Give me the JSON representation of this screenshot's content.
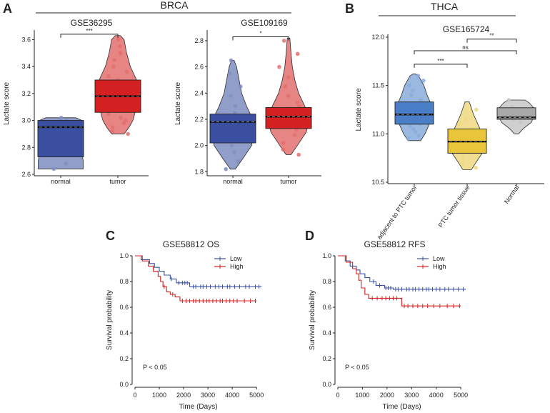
{
  "colors": {
    "normal_brca": "#3a4fa0",
    "tumor_brca": "#d42020",
    "adjacent": "#4a7fc8",
    "ptc": "#e8c53a",
    "thca_normal": "#a8a8a8",
    "km_low": "#3a4fa0",
    "km_high": "#d42020"
  },
  "panels": {
    "A": {
      "letter": "A",
      "group": "BRCA"
    },
    "B": {
      "letter": "B",
      "group": "THCA"
    },
    "C": {
      "letter": "C"
    },
    "D": {
      "letter": "D"
    }
  },
  "chart_data": [
    {
      "id": "A1",
      "type": "box-violin",
      "title": "GSE36295",
      "ylabel": "Lactate score",
      "ylim": [
        2.6,
        3.65
      ],
      "yticks": [
        2.6,
        2.8,
        3.0,
        3.2,
        3.4,
        3.6
      ],
      "ytick_labels": [
        "2.6",
        "2.8",
        "3.0",
        "3.2",
        "3.4",
        "3.6"
      ],
      "categories": [
        "normal",
        "tumor"
      ],
      "series": [
        {
          "name": "normal",
          "color_key": "normal_brca",
          "box": {
            "q1": 2.73,
            "median": 2.95,
            "q3": 3.0,
            "min": 2.64,
            "max": 3.02
          },
          "violin": [
            [
              2.64,
              0.9
            ],
            [
              2.7,
              0.9
            ],
            [
              2.75,
              0.85
            ],
            [
              2.85,
              0.85
            ],
            [
              2.95,
              0.9
            ],
            [
              3.0,
              0.85
            ],
            [
              3.02,
              0.6
            ]
          ],
          "points": [
            2.64,
            2.68,
            2.75,
            2.9,
            2.95,
            2.97,
            3.0,
            3.01,
            3.02
          ]
        },
        {
          "name": "tumor",
          "color_key": "tumor_brca",
          "box": {
            "q1": 3.06,
            "median": 3.18,
            "q3": 3.3,
            "min": 2.9,
            "max": 3.63
          },
          "violin": [
            [
              2.9,
              0.25
            ],
            [
              2.95,
              0.45
            ],
            [
              3.0,
              0.6
            ],
            [
              3.1,
              0.75
            ],
            [
              3.2,
              0.85
            ],
            [
              3.3,
              0.75
            ],
            [
              3.4,
              0.5
            ],
            [
              3.5,
              0.35
            ],
            [
              3.6,
              0.25
            ],
            [
              3.63,
              0.1
            ]
          ],
          "points": [
            2.9,
            2.92,
            2.95,
            2.98,
            3.0,
            3.02,
            3.05,
            3.08,
            3.1,
            3.12,
            3.15,
            3.18,
            3.2,
            3.22,
            3.25,
            3.28,
            3.3,
            3.33,
            3.36,
            3.4,
            3.45,
            3.5,
            3.55,
            3.6
          ]
        }
      ],
      "significance": [
        {
          "from": 0,
          "to": 1,
          "label": "***",
          "y": 3.64
        }
      ]
    },
    {
      "id": "A2",
      "type": "box-violin",
      "title": "GSE109169",
      "ylabel": "Lactate score",
      "ylim": [
        1.78,
        2.86
      ],
      "yticks": [
        1.8,
        2.0,
        2.2,
        2.4,
        2.6,
        2.8
      ],
      "ytick_labels": [
        "1.8",
        "2.0",
        "2.2",
        "2.4",
        "2.6",
        "2.8"
      ],
      "categories": [
        "normal",
        "tumor"
      ],
      "series": [
        {
          "name": "normal",
          "color_key": "normal_brca",
          "box": {
            "q1": 2.02,
            "median": 2.18,
            "q3": 2.24,
            "min": 1.82,
            "max": 2.65
          },
          "violin": [
            [
              1.82,
              0.1
            ],
            [
              1.9,
              0.4
            ],
            [
              2.0,
              0.75
            ],
            [
              2.1,
              0.85
            ],
            [
              2.2,
              0.8
            ],
            [
              2.3,
              0.55
            ],
            [
              2.4,
              0.35
            ],
            [
              2.5,
              0.25
            ],
            [
              2.6,
              0.15
            ],
            [
              2.65,
              0.05
            ]
          ],
          "points": [
            1.82,
            1.88,
            1.95,
            2.0,
            2.05,
            2.1,
            2.12,
            2.15,
            2.18,
            2.2,
            2.22,
            2.25,
            2.3,
            2.38,
            2.45,
            2.55,
            2.65
          ]
        },
        {
          "name": "tumor",
          "color_key": "tumor_brca",
          "box": {
            "q1": 2.13,
            "median": 2.22,
            "q3": 2.29,
            "min": 1.93,
            "max": 2.82
          },
          "violin": [
            [
              1.93,
              0.1
            ],
            [
              2.0,
              0.35
            ],
            [
              2.1,
              0.7
            ],
            [
              2.2,
              0.85
            ],
            [
              2.3,
              0.65
            ],
            [
              2.4,
              0.4
            ],
            [
              2.5,
              0.25
            ],
            [
              2.6,
              0.15
            ],
            [
              2.7,
              0.1
            ],
            [
              2.82,
              0.05
            ]
          ],
          "points": [
            1.93,
            1.97,
            2.02,
            2.08,
            2.12,
            2.15,
            2.18,
            2.2,
            2.22,
            2.24,
            2.26,
            2.28,
            2.3,
            2.33,
            2.38,
            2.45,
            2.52,
            2.6,
            2.7,
            2.8
          ]
        }
      ],
      "significance": [
        {
          "from": 0,
          "to": 1,
          "label": "*",
          "y": 2.83
        }
      ]
    },
    {
      "id": "B",
      "type": "box-violin",
      "title": "GSE165724",
      "ylabel": "Lactate score",
      "ylim": [
        10.5,
        12.0
      ],
      "yticks": [
        10.5,
        11.0,
        11.5,
        12.0
      ],
      "ytick_labels": [
        "10.5",
        "11.0",
        "11.5",
        "12.0"
      ],
      "categories": [
        "adjacent to PTC tumor",
        "PTC tumor tissue",
        "Normal"
      ],
      "series": [
        {
          "name": "adjacent to PTC tumor",
          "color_key": "adjacent",
          "box": {
            "q1": 11.1,
            "median": 11.2,
            "q3": 11.33,
            "min": 10.93,
            "max": 11.62
          },
          "violin": [
            [
              10.93,
              0.3
            ],
            [
              11.0,
              0.5
            ],
            [
              11.1,
              0.7
            ],
            [
              11.2,
              0.85
            ],
            [
              11.3,
              0.8
            ],
            [
              11.4,
              0.6
            ],
            [
              11.5,
              0.45
            ],
            [
              11.6,
              0.2
            ],
            [
              11.62,
              0.05
            ]
          ],
          "points": [
            10.95,
            10.98,
            11.02,
            11.05,
            11.08,
            11.1,
            11.13,
            11.16,
            11.18,
            11.2,
            11.22,
            11.25,
            11.28,
            11.3,
            11.35,
            11.4,
            11.45,
            11.5,
            11.55,
            11.6
          ]
        },
        {
          "name": "PTC tumor tissue",
          "color_key": "ptc",
          "box": {
            "q1": 10.8,
            "median": 10.92,
            "q3": 11.05,
            "min": 10.63,
            "max": 11.33
          },
          "violin": [
            [
              10.63,
              0.2
            ],
            [
              10.7,
              0.4
            ],
            [
              10.8,
              0.7
            ],
            [
              10.9,
              0.85
            ],
            [
              11.0,
              0.7
            ],
            [
              11.1,
              0.5
            ],
            [
              11.2,
              0.3
            ],
            [
              11.33,
              0.1
            ]
          ],
          "points": [
            10.65,
            10.7,
            10.75,
            10.8,
            10.85,
            10.9,
            10.92,
            10.95,
            11.0,
            11.05,
            11.1,
            11.15,
            11.25
          ]
        },
        {
          "name": "Normal",
          "color_key": "thca_normal",
          "box": {
            "q1": 11.15,
            "median": 11.17,
            "q3": 11.27,
            "min": 11.0,
            "max": 11.35
          },
          "violin": [
            [
              11.0,
              0.1
            ],
            [
              11.05,
              0.3
            ],
            [
              11.12,
              0.7
            ],
            [
              11.2,
              0.85
            ],
            [
              11.27,
              0.8
            ],
            [
              11.32,
              0.6
            ],
            [
              11.35,
              0.4
            ]
          ],
          "points": [
            11.12,
            11.15,
            11.18,
            11.2,
            11.24,
            11.28,
            11.35
          ]
        }
      ],
      "significance": [
        {
          "from": 0,
          "to": 1,
          "label": "***",
          "y": 11.72
        },
        {
          "from": 0,
          "to": 2,
          "label": "ns",
          "y": 11.86
        },
        {
          "from": 1,
          "to": 2,
          "label": "**",
          "y": 11.98
        }
      ]
    },
    {
      "id": "C",
      "type": "line",
      "subtype": "kaplan-meier",
      "title": "GSE58812    OS",
      "xlabel": "Time (Days)",
      "ylabel": "Survival probability",
      "xlim": [
        0,
        5200
      ],
      "ylim": [
        0,
        1.0
      ],
      "xticks": [
        0,
        1000,
        2000,
        3000,
        4000,
        5000
      ],
      "xtick_labels": [
        "0",
        "1000",
        "2000",
        "3000",
        "4000",
        "5000"
      ],
      "yticks": [
        0,
        0.2,
        0.4,
        0.6,
        0.8,
        1.0
      ],
      "ytick_labels": [
        "0.0",
        "0.2",
        "0.4",
        "0.6",
        "0.8",
        "1.0"
      ],
      "annotation": "P < 0.05",
      "series": [
        {
          "name": "Low",
          "color_key": "km_low",
          "steps": [
            [
              0,
              1.0
            ],
            [
              250,
              0.97
            ],
            [
              600,
              0.94
            ],
            [
              800,
              0.91
            ],
            [
              1000,
              0.88
            ],
            [
              1200,
              0.85
            ],
            [
              1450,
              0.82
            ],
            [
              1700,
              0.79
            ],
            [
              2250,
              0.76
            ],
            [
              5200,
              0.76
            ]
          ],
          "censors": [
            1500,
            1800,
            1950,
            2050,
            2150,
            2400,
            2500,
            2700,
            2800,
            2950,
            3100,
            3300,
            3450,
            3600,
            3800,
            3900,
            4100,
            4300,
            4550,
            4700,
            4950,
            5100
          ]
        },
        {
          "name": "High",
          "color_key": "km_high",
          "steps": [
            [
              0,
              1.0
            ],
            [
              300,
              0.96
            ],
            [
              550,
              0.92
            ],
            [
              750,
              0.88
            ],
            [
              950,
              0.84
            ],
            [
              1050,
              0.8
            ],
            [
              1150,
              0.76
            ],
            [
              1300,
              0.72
            ],
            [
              1450,
              0.7
            ],
            [
              1650,
              0.68
            ],
            [
              1850,
              0.65
            ],
            [
              5000,
              0.65
            ]
          ],
          "censors": [
            1200,
            1550,
            1950,
            2100,
            2250,
            2400,
            2500,
            2650,
            2800,
            2950,
            3050,
            3200,
            3350,
            3500,
            3600,
            3750,
            3900,
            4050,
            4200,
            4500,
            4750,
            4950
          ]
        }
      ]
    },
    {
      "id": "D",
      "type": "line",
      "subtype": "kaplan-meier",
      "title": "GSE58812    RFS",
      "xlabel": "Time (Days)",
      "ylabel": "Survival probability",
      "xlim": [
        0,
        5200
      ],
      "ylim": [
        0,
        1.0
      ],
      "xticks": [
        0,
        1000,
        2000,
        3000,
        4000,
        5000
      ],
      "xtick_labels": [
        "0",
        "1000",
        "2000",
        "3000",
        "4000",
        "5000"
      ],
      "yticks": [
        0,
        0.2,
        0.4,
        0.6,
        0.8,
        1.0
      ],
      "ytick_labels": [
        "0.0",
        "0.2",
        "0.4",
        "0.6",
        "0.8",
        "1.0"
      ],
      "annotation": "P < 0.05",
      "series": [
        {
          "name": "Low",
          "color_key": "km_low",
          "steps": [
            [
              0,
              1.0
            ],
            [
              300,
              0.96
            ],
            [
              500,
              0.92
            ],
            [
              750,
              0.89
            ],
            [
              900,
              0.86
            ],
            [
              1100,
              0.83
            ],
            [
              1300,
              0.8
            ],
            [
              1550,
              0.77
            ],
            [
              1900,
              0.75
            ],
            [
              2250,
              0.74
            ],
            [
              5200,
              0.74
            ]
          ],
          "censors": [
            1450,
            1700,
            1950,
            2050,
            2150,
            2350,
            2450,
            2600,
            2800,
            2900,
            3050,
            3150,
            3300,
            3450,
            3600,
            3700,
            3850,
            4000,
            4150,
            4350,
            4500,
            4700,
            4900,
            5100
          ]
        },
        {
          "name": "High",
          "color_key": "km_high",
          "steps": [
            [
              0,
              1.0
            ],
            [
              350,
              0.95
            ],
            [
              600,
              0.9
            ],
            [
              750,
              0.86
            ],
            [
              850,
              0.81
            ],
            [
              950,
              0.75
            ],
            [
              1100,
              0.7
            ],
            [
              1250,
              0.67
            ],
            [
              2600,
              0.61
            ],
            [
              5000,
              0.61
            ]
          ],
          "censors": [
            1400,
            1600,
            1800,
            1950,
            2100,
            2250,
            2400,
            2700,
            2850,
            3050,
            3250,
            3450,
            3650,
            3900,
            4150,
            4450,
            4700,
            4950
          ]
        }
      ]
    }
  ]
}
